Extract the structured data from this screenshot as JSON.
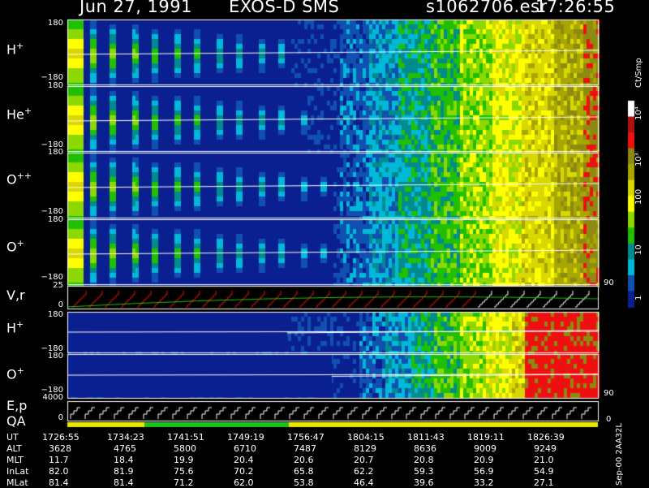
{
  "header": {
    "date": "Jun 27, 1991",
    "instrument": "EXOS-D SMS",
    "file": "s1062706.esr",
    "time": "17:26:55"
  },
  "panels": [
    {
      "id": "H+",
      "label": "H",
      "charge": "+",
      "top_tick": "180",
      "bottom_tick": "−180"
    },
    {
      "id": "He+",
      "label": "He",
      "charge": "+",
      "top_tick": "180",
      "bottom_tick": "−180"
    },
    {
      "id": "O++",
      "label": "O",
      "charge": "++",
      "top_tick": "180",
      "bottom_tick": "−180"
    },
    {
      "id": "O+",
      "label": "O",
      "charge": "+",
      "top_tick": "",
      "bottom_tick": "−180"
    },
    {
      "id": "V,r",
      "label": "V,r",
      "charge": "",
      "top_tick": "25",
      "bottom_tick": "0",
      "right_tick": "90"
    },
    {
      "id": "H+2",
      "label": "H",
      "charge": "+",
      "top_tick": "180",
      "bottom_tick": "−180"
    },
    {
      "id": "O+2",
      "label": "O",
      "charge": "+",
      "top_tick": "180",
      "bottom_tick": "−180",
      "right_tick": "90"
    },
    {
      "id": "E,p",
      "label": "E,p",
      "charge": "",
      "top_tick": "4000",
      "bottom_tick": "0",
      "right_tick": "0"
    }
  ],
  "qa_label": "QA",
  "colorbar": {
    "unit": "Ct/Smp",
    "ticks": [
      "10⁴",
      "10³",
      "100",
      "10",
      "1"
    ],
    "colors": [
      "#ffffff",
      "#b01010",
      "#ee1010",
      "#8c8a10",
      "#a8a600",
      "#d8d800",
      "#ffff00",
      "#8cd800",
      "#20c000",
      "#008c8c",
      "#00b8d8",
      "#1050b0",
      "#0a2090"
    ]
  },
  "footer_note": "Sep-00 2AA32L",
  "chart_data": {
    "type": "heatmap",
    "x": [
      "1726:55",
      "1734:23",
      "1741:51",
      "1749:19",
      "1756:47",
      "1804:15",
      "1811:43",
      "1819:11",
      "1826:39"
    ],
    "rows": [
      {
        "name": "UT",
        "values": [
          "1726:55",
          "1734:23",
          "1741:51",
          "1749:19",
          "1756:47",
          "1804:15",
          "1811:43",
          "1819:11",
          "1826:39"
        ]
      },
      {
        "name": "ALT",
        "values": [
          "3628",
          "4765",
          "5800",
          "6710",
          "7487",
          "8129",
          "8636",
          "9009",
          "9249"
        ]
      },
      {
        "name": "MLT",
        "values": [
          "11.7",
          "18.4",
          "19.9",
          "20.4",
          "20.6",
          "20.7",
          "20.8",
          "20.9",
          "21.0"
        ]
      },
      {
        "name": "InLat",
        "values": [
          "82.0",
          "81.9",
          "75.6",
          "70.2",
          "65.8",
          "62.2",
          "59.3",
          "56.9",
          "54.9"
        ]
      },
      {
        "name": "MLat",
        "values": [
          "81.4",
          "81.4",
          "71.2",
          "62.0",
          "53.8",
          "46.4",
          "39.6",
          "33.2",
          "27.1"
        ]
      }
    ]
  }
}
